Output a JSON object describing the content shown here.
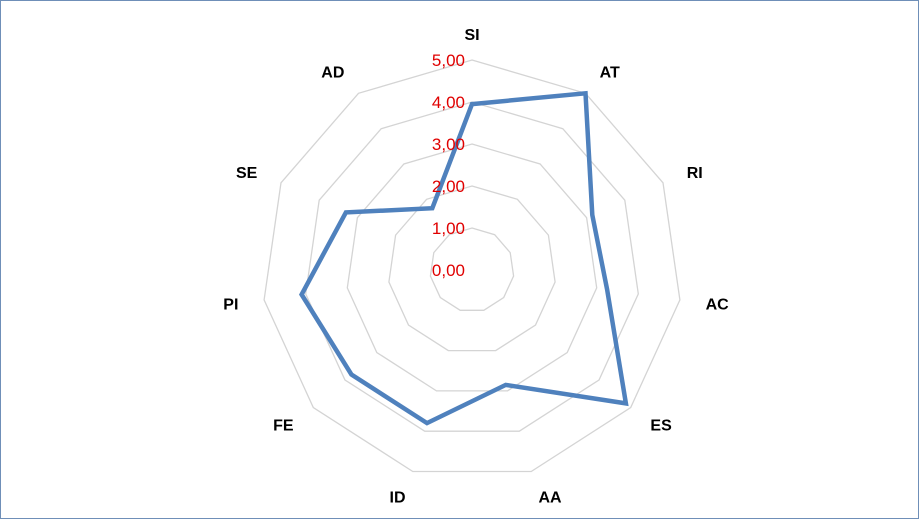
{
  "chart_data": {
    "type": "radar",
    "title": "",
    "categories": [
      "SI",
      "AT",
      "RI",
      "AC",
      "ES",
      "AA",
      "ID",
      "FE",
      "PI",
      "SE",
      "AD"
    ],
    "series": [
      {
        "values": [
          3.95,
          5.0,
          3.15,
          3.25,
          4.85,
          2.85,
          3.8,
          3.8,
          4.1,
          3.3,
          1.75
        ]
      }
    ],
    "rlim": [
      0,
      5
    ],
    "ticks": [
      "0,00",
      "1,00",
      "2,00",
      "3,00",
      "4,00",
      "5,00"
    ],
    "grid": true,
    "legend": "none",
    "colors": {
      "series": "#4f81bd",
      "grid": "#d4d4d4",
      "tick_labels": "#e00000",
      "axis_labels": "#000000",
      "frame": "#6f8fb8"
    }
  }
}
